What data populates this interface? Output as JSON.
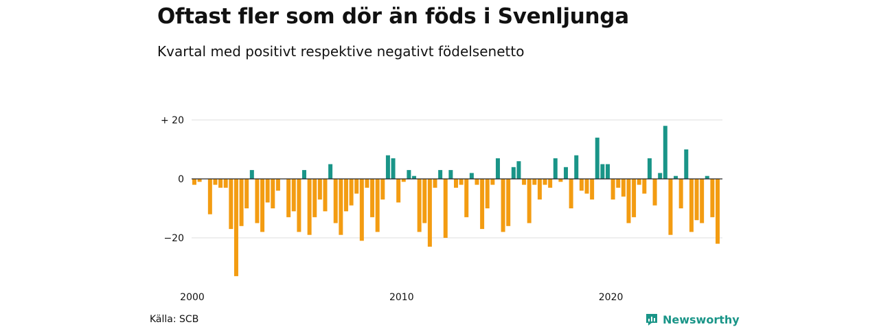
{
  "title": "Oftast fler som dör än föds i Svenljunga",
  "subtitle": "Kvartal med positivt respektive negativt födelsenetto",
  "source": "Källa: SCB",
  "brand": "Newsworthy",
  "colors": {
    "positive": "#1a9588",
    "negative": "#f39c12",
    "grid": "#dddddd",
    "zero": "#222222"
  },
  "chart_data": {
    "type": "bar",
    "x_start": "2000 Q1",
    "y_ticks": [
      {
        "value": 20,
        "label": "+ 20"
      },
      {
        "value": 0,
        "label": "0"
      },
      {
        "value": -20,
        "label": "−20"
      }
    ],
    "x_ticks": [
      {
        "index": 0,
        "label": "2000"
      },
      {
        "index": 40,
        "label": "2010"
      },
      {
        "index": 80,
        "label": "2020"
      }
    ],
    "ylim": [
      -35,
      22
    ],
    "values": [
      -2,
      -1,
      0,
      -12,
      -2,
      -3,
      -3,
      -17,
      -33,
      -16,
      -10,
      3,
      -15,
      -18,
      -8,
      -10,
      -4,
      0,
      -13,
      -11,
      -18,
      3,
      -19,
      -13,
      -7,
      -11,
      5,
      -15,
      -19,
      -11,
      -9,
      -5,
      -21,
      -3,
      -13,
      -18,
      -7,
      8,
      7,
      -8,
      -1,
      3,
      1,
      -18,
      -15,
      -23,
      -3,
      3,
      -20,
      3,
      -3,
      -2,
      -13,
      2,
      -2,
      -17,
      -10,
      -2,
      7,
      -18,
      -16,
      4,
      6,
      -2,
      -15,
      -2,
      -7,
      -2,
      -3,
      7,
      -1,
      4,
      -10,
      8,
      -4,
      -5,
      -7,
      14,
      5,
      5,
      -7,
      -3,
      -6,
      -15,
      -13,
      -2,
      -5,
      7,
      -9,
      2,
      18,
      -19,
      1,
      -10,
      10,
      -18,
      -14,
      -15,
      1,
      -13,
      -22
    ]
  }
}
